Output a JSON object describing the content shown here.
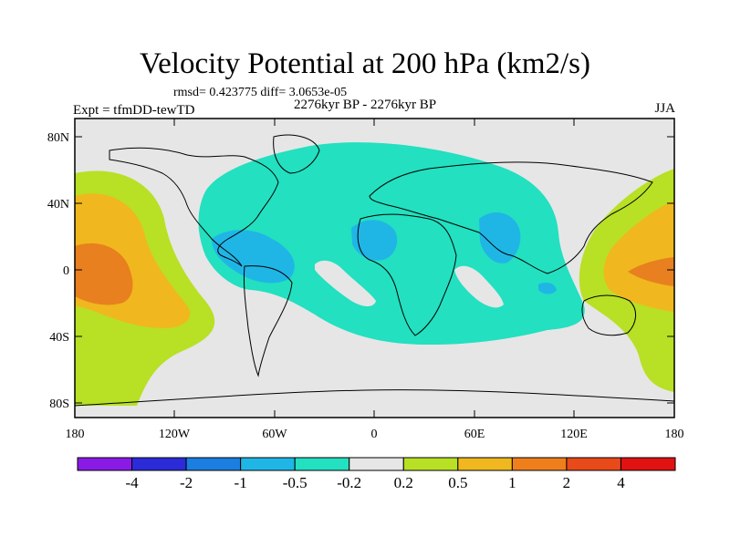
{
  "title": "Velocity Potential at 200 hPa (km2/s)",
  "stats": "rmsd= 0.423775 diff= 3.0653e-05",
  "experiment": "Expt = tfmDD-tewTD",
  "period": "2276kyr BP - 2276kyr BP",
  "season": "JJA",
  "map": {
    "lat_labels": [
      "80N",
      "40N",
      "0",
      "40S",
      "80S"
    ],
    "lon_labels": [
      "180",
      "120W",
      "60W",
      "0",
      "60E",
      "120E",
      "180"
    ]
  },
  "colorbar": {
    "labels": [
      "-4",
      "-2",
      "-1",
      "-0.5",
      "-0.2",
      "0.2",
      "0.5",
      "1",
      "2",
      "4"
    ],
    "colors": [
      "#8a1be6",
      "#2b2bd8",
      "#1a7fe0",
      "#1fb6e6",
      "#22e0c0",
      "#e6e6e6",
      "#b8e025",
      "#f0b81e",
      "#ef7f1c",
      "#e84a1a",
      "#e01212"
    ]
  },
  "shading_colors": {
    "land_coast": "#000000",
    "neutral": "#e6e6e6",
    "teal": "#22e0c0",
    "lightblue": "#1fb6e6",
    "yellowgreen": "#b8e025",
    "orange": "#f0b81e",
    "darkorange": "#e8801f"
  }
}
